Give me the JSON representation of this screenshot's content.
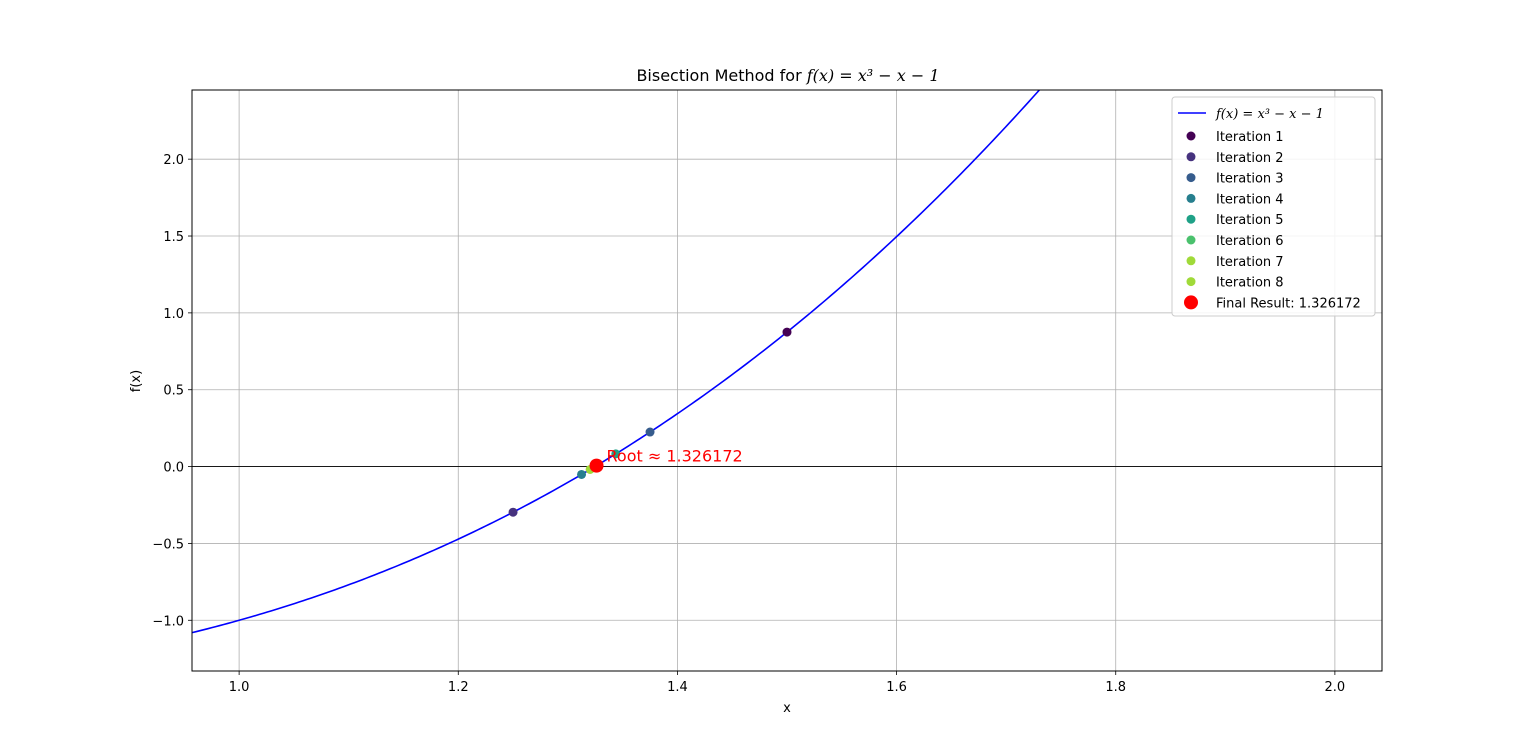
{
  "chart_data": {
    "type": "scatter",
    "title_prefix": "Bisection Method for ",
    "title_math": "f(x) = x³ − x − 1",
    "xlabel": "x",
    "ylabel": "f(x)",
    "xlim": [
      0.957,
      2.043
    ],
    "ylim": [
      -1.33,
      2.45
    ],
    "xticks": [
      "1.0",
      "1.2",
      "1.4",
      "1.6",
      "1.8",
      "2.0"
    ],
    "xtick_values": [
      1.0,
      1.2,
      1.4,
      1.6,
      1.8,
      2.0
    ],
    "yticks": [
      "−1.0",
      "−0.5",
      "0.0",
      "0.5",
      "1.0",
      "1.5",
      "2.0"
    ],
    "ytick_values": [
      -1.0,
      -0.5,
      0.0,
      0.5,
      1.0,
      1.5,
      2.0
    ],
    "grid": true,
    "zero_line": true,
    "legend_position": "top-right",
    "curve": {
      "name": "f(x) = x³ − x − 1",
      "color": "#0000ff",
      "x_range": [
        0.957,
        2.043
      ]
    },
    "series": [
      {
        "name": "Iteration 1",
        "x": 1.5,
        "y": 0.875,
        "color": "#440154"
      },
      {
        "name": "Iteration 2",
        "x": 1.25,
        "y": -0.296875,
        "color": "#46327e"
      },
      {
        "name": "Iteration 3",
        "x": 1.375,
        "y": 0.224609,
        "color": "#365c8d"
      },
      {
        "name": "Iteration 4",
        "x": 1.3125,
        "y": -0.051514,
        "color": "#277f8e"
      },
      {
        "name": "Iteration 5",
        "x": 1.34375,
        "y": 0.082611,
        "color": "#1fa187"
      },
      {
        "name": "Iteration 6",
        "x": 1.328125,
        "y": 0.014576,
        "color": "#4ac16d"
      },
      {
        "name": "Iteration 7",
        "x": 1.320312,
        "y": -0.018711,
        "color": "#a0da39"
      },
      {
        "name": "Iteration 8",
        "x": 1.324219,
        "y": -0.002128,
        "color": "#a0da39"
      }
    ],
    "final": {
      "name": "Final Result: 1.326172",
      "x": 1.326172,
      "y": 0.006209,
      "color": "#ff0000"
    },
    "annotation": "Root ≈ 1.326172"
  }
}
